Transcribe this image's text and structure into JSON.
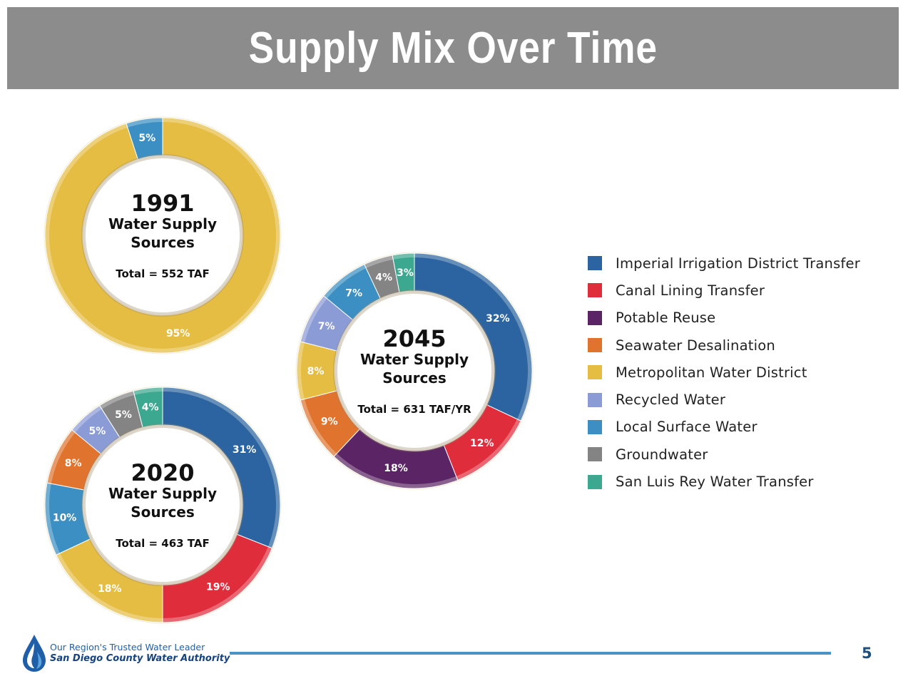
{
  "title": "Supply Mix Over Time",
  "colors": {
    "Imperial Irrigation District Transfer": "#2b64a0",
    "Canal Lining Transfer": "#e02d3c",
    "Potable Reuse": "#5b2465",
    "Seawater Desalination": "#e0732e",
    "Metropolitan Water District": "#e6bd43",
    "Recycled Water": "#8b9bd6",
    "Local Surface Water": "#3b8fc2",
    "Groundwater": "#848484",
    "San Luis Rey Water Transfer": "#3ba88f"
  },
  "chart_data": [
    {
      "type": "pie",
      "year": "1991",
      "subtitle_line1": "Water Supply",
      "subtitle_line2": "Sources",
      "total_label": "Total = 552 TAF",
      "slices": [
        {
          "name": "Metropolitan Water District",
          "value": 95,
          "label": "95%"
        },
        {
          "name": "Local Surface Water",
          "value": 5,
          "label": "5%"
        }
      ]
    },
    {
      "type": "pie",
      "year": "2045",
      "subtitle_line1": "Water Supply",
      "subtitle_line2": "Sources",
      "total_label": "Total = 631 TAF/YR",
      "slices": [
        {
          "name": "Imperial Irrigation District Transfer",
          "value": 32,
          "label": "32%"
        },
        {
          "name": "Canal Lining Transfer",
          "value": 12,
          "label": "12%"
        },
        {
          "name": "Potable Reuse",
          "value": 18,
          "label": "18%"
        },
        {
          "name": "Seawater Desalination",
          "value": 9,
          "label": "9%"
        },
        {
          "name": "Metropolitan Water District",
          "value": 8,
          "label": "8%"
        },
        {
          "name": "Recycled Water",
          "value": 7,
          "label": "7%"
        },
        {
          "name": "Local Surface Water",
          "value": 7,
          "label": "7%"
        },
        {
          "name": "Groundwater",
          "value": 4,
          "label": "4%"
        },
        {
          "name": "San Luis Rey Water Transfer",
          "value": 3,
          "label": "3%"
        }
      ]
    },
    {
      "type": "pie",
      "year": "2020",
      "subtitle_line1": "Water Supply",
      "subtitle_line2": "Sources",
      "total_label": "Total = 463 TAF",
      "slices": [
        {
          "name": "Imperial Irrigation District Transfer",
          "value": 31,
          "label": "31%"
        },
        {
          "name": "Canal Lining Transfer",
          "value": 19,
          "label": "19%"
        },
        {
          "name": "Metropolitan Water District",
          "value": 18,
          "label": "18%"
        },
        {
          "name": "Local Surface Water",
          "value": 10,
          "label": "10%"
        },
        {
          "name": "Seawater Desalination",
          "value": 8,
          "label": "8%"
        },
        {
          "name": "Recycled Water",
          "value": 5,
          "label": "5%"
        },
        {
          "name": "Groundwater",
          "value": 5,
          "label": "5%"
        },
        {
          "name": "San Luis Rey Water Transfer",
          "value": 4,
          "label": "4%"
        }
      ]
    }
  ],
  "legend": {
    "placement": "right",
    "items": [
      {
        "label": "Imperial Irrigation District Transfer",
        "color": "#2b64a0"
      },
      {
        "label": "Canal Lining Transfer",
        "color": "#e02d3c"
      },
      {
        "label": "Potable Reuse",
        "color": "#5b2465"
      },
      {
        "label": "Seawater Desalination",
        "color": "#e0732e"
      },
      {
        "label": "Metropolitan Water District",
        "color": "#e6bd43"
      },
      {
        "label": "Recycled Water",
        "color": "#8b9bd6"
      },
      {
        "label": "Local Surface Water",
        "color": "#3b8fc2"
      },
      {
        "label": "Groundwater",
        "color": "#848484"
      },
      {
        "label": "San Luis Rey Water Transfer",
        "color": "#3ba88f"
      }
    ]
  },
  "footer": {
    "tagline": "Our Region's Trusted Water Leader",
    "org_name": "San Diego County Water Authority",
    "page_number": "5"
  }
}
